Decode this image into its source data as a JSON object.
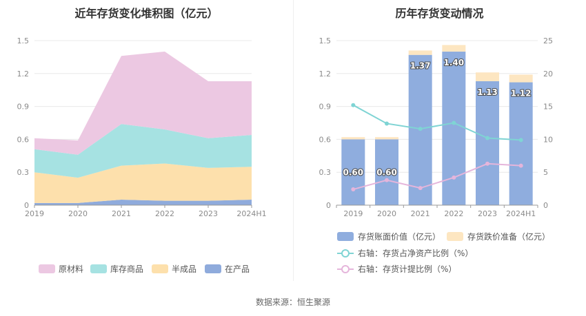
{
  "left_title": "近年存货变化堆积图（亿元）",
  "right_title": "历年存货变动情况",
  "footer": "数据来源：恒生聚源",
  "colors": {
    "raw": "#ecc8e2",
    "goods": "#a6e2e2",
    "semi": "#fde0ac",
    "wip": "#8fabdc",
    "bar": "#8fadde",
    "reserve": "#fde6c1",
    "line_net": "#7fd4d4",
    "line_reserve": "#e5b5db",
    "grid": "#e8e8e8",
    "axis": "#999999"
  },
  "chart_data": [
    {
      "type": "area",
      "stacked": true,
      "title": "近年存货变化堆积图（亿元）",
      "categories": [
        "2019",
        "2020",
        "2021",
        "2022",
        "2023",
        "2024H1"
      ],
      "y_ticks": [
        "0",
        "0.3",
        "0.6",
        "0.9",
        "1.2",
        "1.5"
      ],
      "ylim": [
        0,
        1.5
      ],
      "series": [
        {
          "name": "在产品",
          "values": [
            0.02,
            0.02,
            0.05,
            0.04,
            0.04,
            0.05
          ]
        },
        {
          "name": "半成品",
          "values": [
            0.28,
            0.23,
            0.31,
            0.34,
            0.3,
            0.3
          ]
        },
        {
          "name": "库存商品",
          "values": [
            0.21,
            0.21,
            0.38,
            0.31,
            0.27,
            0.29
          ]
        },
        {
          "name": "原材料",
          "values": [
            0.1,
            0.13,
            0.62,
            0.71,
            0.52,
            0.49
          ]
        }
      ],
      "legend": [
        "原材料",
        "库存商品",
        "半成品",
        "在产品"
      ],
      "legend_position": "bottom",
      "grid": true
    },
    {
      "type": "bar",
      "title": "历年存货变动情况",
      "categories": [
        "2019",
        "2020",
        "2021",
        "2022",
        "2023",
        "2024H1"
      ],
      "y_left_ticks": [
        "0",
        "0.3",
        "0.6",
        "0.9",
        "1.2",
        "1.5"
      ],
      "y_right_ticks": [
        "0",
        "5",
        "10",
        "15",
        "20",
        "25"
      ],
      "ylim_left": [
        0,
        1.5
      ],
      "ylim_right": [
        0,
        25
      ],
      "bars": [
        {
          "name": "存货账面价值（亿元）",
          "values": [
            0.6,
            0.6,
            1.37,
            1.4,
            1.13,
            1.12
          ],
          "labels": [
            "0.60",
            "0.60",
            "1.37",
            "1.40",
            "1.13",
            "1.12"
          ]
        },
        {
          "name": "存货跌价准备（亿元）",
          "values": [
            0.02,
            0.02,
            0.04,
            0.06,
            0.08,
            0.07
          ]
        }
      ],
      "lines": [
        {
          "name": "右轴：存货占净资产比例（%）",
          "values": [
            15.2,
            12.4,
            11.6,
            12.5,
            10.2,
            9.9
          ]
        },
        {
          "name": "右轴：存货计提比例（%）",
          "values": [
            2.4,
            3.8,
            2.6,
            4.2,
            6.3,
            6.0
          ]
        }
      ],
      "legend_position": "bottom",
      "grid": true
    }
  ]
}
